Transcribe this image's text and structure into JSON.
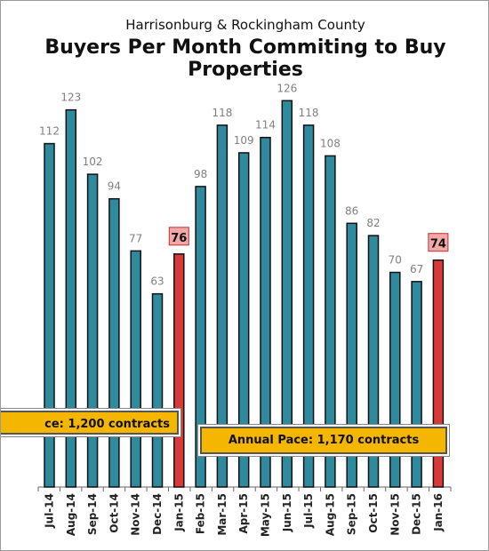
{
  "chart_data": {
    "type": "bar",
    "subtitle": "Harrisonburg & Rockingham County",
    "title": "Buyers Per Month Commiting to Buy Properties",
    "xlabel": "",
    "ylabel": "",
    "ylim": [
      0,
      135
    ],
    "grid": false,
    "legend": "none",
    "categories": [
      "Jul-14",
      "Aug-14",
      "Sep-14",
      "Oct-14",
      "Nov-14",
      "Dec-14",
      "Jan-15",
      "Feb-15",
      "Mar-15",
      "Apr-15",
      "May-15",
      "Jun-15",
      "Jul-15",
      "Aug-15",
      "Sep-15",
      "Oct-15",
      "Nov-15",
      "Dec-15",
      "Jan-16"
    ],
    "values": [
      112,
      123,
      102,
      94,
      77,
      63,
      76,
      98,
      118,
      109,
      114,
      126,
      118,
      108,
      86,
      82,
      70,
      67,
      74
    ],
    "highlight": [
      false,
      false,
      false,
      false,
      false,
      false,
      true,
      false,
      false,
      false,
      false,
      false,
      false,
      false,
      false,
      false,
      false,
      false,
      true
    ],
    "colors": {
      "bar": "#2e8a9c",
      "highlight": "#d83a3a",
      "label_box": "#f2a8a8",
      "pace_box": "#f5b600"
    },
    "annotations": [
      {
        "id": "pace_left",
        "text": "ce: 1,200 contracts"
      },
      {
        "id": "pace_right",
        "text": "Annual Pace: 1,170 contracts"
      }
    ]
  }
}
